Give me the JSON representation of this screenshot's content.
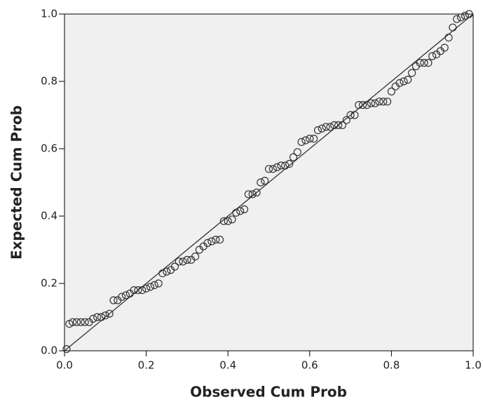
{
  "chart_data": {
    "type": "scatter",
    "x_label": "Observed Cum Prob",
    "y_label": "Expected Cum Prob",
    "xlim": [
      0,
      1
    ],
    "ylim": [
      0,
      1
    ],
    "xticks": [
      {
        "value": 0,
        "label": "0.0"
      },
      0.2,
      0.4,
      0.6,
      0.8,
      {
        "value": 1,
        "label": "1.0"
      }
    ],
    "yticks": [
      {
        "value": 0,
        "label": "0.0"
      },
      0.2,
      0.4,
      0.6,
      0.8,
      {
        "value": 1,
        "label": "1.0"
      }
    ],
    "reference_line": {
      "x": [
        0,
        1
      ],
      "y": [
        0,
        1
      ]
    },
    "x": [
      0.005,
      0.012,
      0.02,
      0.03,
      0.04,
      0.05,
      0.06,
      0.07,
      0.08,
      0.09,
      0.1,
      0.11,
      0.12,
      0.13,
      0.14,
      0.15,
      0.16,
      0.17,
      0.18,
      0.19,
      0.2,
      0.21,
      0.22,
      0.23,
      0.24,
      0.25,
      0.26,
      0.27,
      0.28,
      0.29,
      0.3,
      0.31,
      0.32,
      0.33,
      0.34,
      0.35,
      0.36,
      0.37,
      0.38,
      0.39,
      0.4,
      0.41,
      0.42,
      0.43,
      0.44,
      0.45,
      0.46,
      0.47,
      0.48,
      0.49,
      0.5,
      0.51,
      0.52,
      0.53,
      0.54,
      0.55,
      0.56,
      0.57,
      0.58,
      0.59,
      0.6,
      0.61,
      0.62,
      0.63,
      0.64,
      0.65,
      0.66,
      0.67,
      0.68,
      0.69,
      0.7,
      0.71,
      0.72,
      0.73,
      0.74,
      0.75,
      0.76,
      0.77,
      0.78,
      0.79,
      0.8,
      0.81,
      0.82,
      0.83,
      0.84,
      0.85,
      0.86,
      0.87,
      0.88,
      0.89,
      0.9,
      0.91,
      0.92,
      0.93,
      0.94,
      0.95,
      0.96,
      0.97,
      0.98,
      0.99
    ],
    "values": [
      0.005,
      0.08,
      0.085,
      0.085,
      0.085,
      0.085,
      0.085,
      0.095,
      0.1,
      0.1,
      0.105,
      0.11,
      0.15,
      0.15,
      0.16,
      0.165,
      0.17,
      0.18,
      0.18,
      0.18,
      0.185,
      0.19,
      0.195,
      0.2,
      0.23,
      0.235,
      0.24,
      0.25,
      0.265,
      0.265,
      0.27,
      0.27,
      0.28,
      0.3,
      0.31,
      0.32,
      0.325,
      0.33,
      0.33,
      0.385,
      0.385,
      0.39,
      0.41,
      0.415,
      0.42,
      0.465,
      0.465,
      0.47,
      0.5,
      0.505,
      0.54,
      0.54,
      0.545,
      0.55,
      0.55,
      0.555,
      0.575,
      0.59,
      0.62,
      0.625,
      0.63,
      0.63,
      0.655,
      0.66,
      0.665,
      0.665,
      0.67,
      0.67,
      0.67,
      0.685,
      0.7,
      0.7,
      0.73,
      0.73,
      0.73,
      0.735,
      0.735,
      0.74,
      0.74,
      0.74,
      0.77,
      0.785,
      0.795,
      0.8,
      0.805,
      0.825,
      0.845,
      0.855,
      0.855,
      0.855,
      0.875,
      0.88,
      0.89,
      0.9,
      0.93,
      0.96,
      0.985,
      0.99,
      0.995,
      1.0
    ],
    "color": "#333333",
    "plot_background": "#f0f0f0"
  }
}
